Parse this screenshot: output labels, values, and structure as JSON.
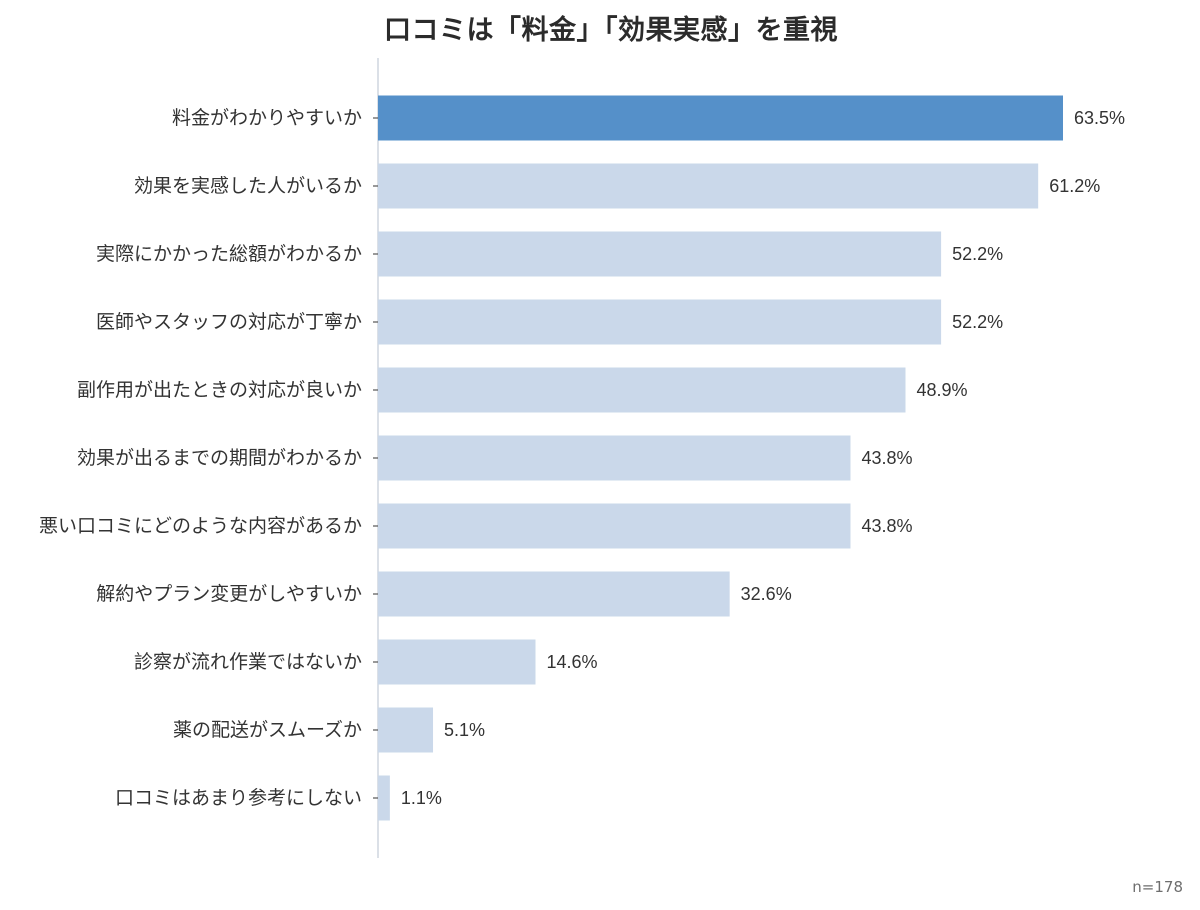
{
  "chart_data": {
    "type": "bar",
    "orientation": "horizontal",
    "title": "口コミは「料金」「効果実感」を重視",
    "categories": [
      "料金がわかりやすいか",
      "効果を実感した人がいるか",
      "実際にかかった総額がわかるか",
      "医師やスタッフの対応が丁寧か",
      "副作用が出たときの対応が良いか",
      "効果が出るまでの期間がわかるか",
      "悪い口コミにどのような内容があるか",
      "解約やプラン変更がしやすいか",
      "診察が流れ作業ではないか",
      "薬の配送がスムーズか",
      "口コミはあまり参考にしない"
    ],
    "values": [
      63.5,
      61.2,
      52.2,
      52.2,
      48.9,
      43.8,
      43.8,
      32.6,
      14.6,
      5.1,
      1.1
    ],
    "value_labels": [
      "63.5%",
      "61.2%",
      "52.2%",
      "52.2%",
      "48.9%",
      "43.8%",
      "43.8%",
      "32.6%",
      "14.6%",
      "5.1%",
      "1.1%"
    ],
    "xlim": [
      0,
      63.5
    ],
    "highlight_index": 0,
    "grid": false,
    "sample_size": "n=178"
  },
  "colors": {
    "highlight": "#5590c9",
    "bar": "#cad8ea",
    "axis": "#cfd6df",
    "category_text": "#333333",
    "value_text": "#333333",
    "title_text": "#2b2b2b"
  }
}
